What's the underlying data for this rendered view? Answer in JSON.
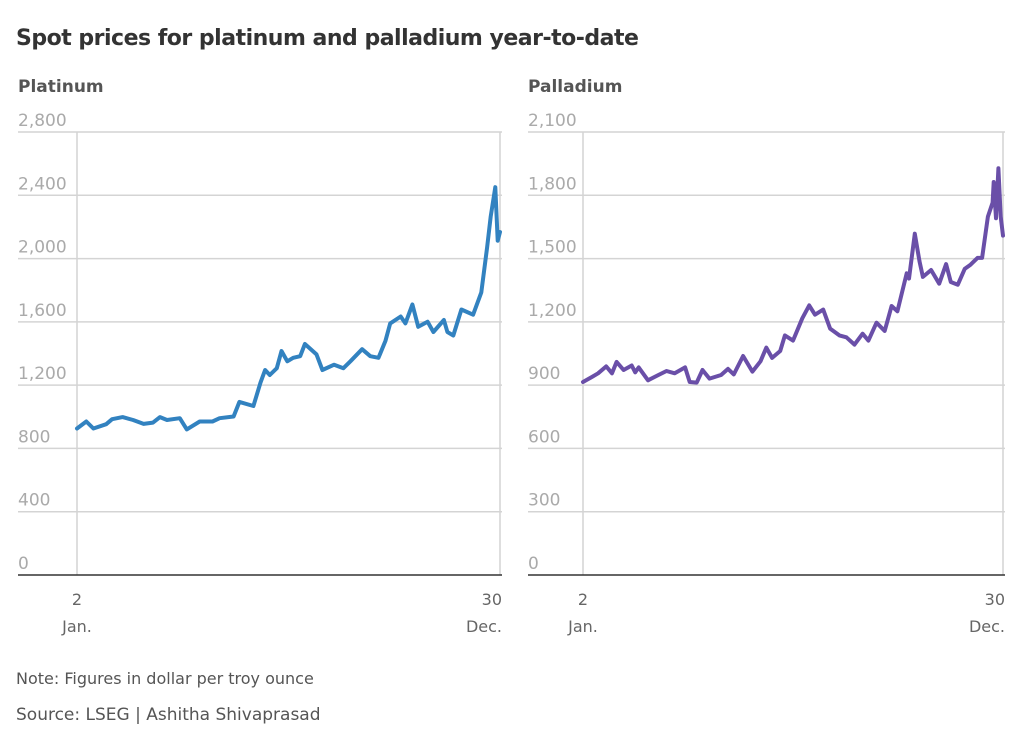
{
  "title": "Spot prices for platinum and palladium year-to-date",
  "note": "Note: Figures in dollar per troy ounce",
  "source": "Source: LSEG | Ashitha Shivaprasad",
  "chart_data": [
    {
      "type": "line",
      "title": "Platinum",
      "color": "#3282c0",
      "ylim": [
        0,
        2800
      ],
      "yticks": [
        0,
        400,
        800,
        1200,
        1600,
        2000,
        2400,
        2800
      ],
      "ytick_labels": [
        "0",
        "400",
        "800",
        "1,200",
        "1,600",
        "2,000",
        "2,400",
        "2,800"
      ],
      "xlim": [
        "01-02",
        "12-30"
      ],
      "xtick_labels": [
        {
          "day": "2",
          "month": "Jan."
        },
        {
          "day": "30",
          "month": "Dec."
        }
      ],
      "grid": true,
      "x": [
        "01-02",
        "01-10",
        "01-16",
        "01-27",
        "02-01",
        "02-10",
        "02-19",
        "02-28",
        "03-08",
        "03-14",
        "03-20",
        "03-31",
        "04-06",
        "04-17",
        "04-28",
        "05-04",
        "05-16",
        "05-21",
        "06-02",
        "06-08",
        "06-12",
        "06-16",
        "06-22",
        "06-26",
        "07-01",
        "07-06",
        "07-12",
        "07-16",
        "07-26",
        "07-31",
        "08-10",
        "08-18",
        "08-24",
        "09-03",
        "09-10",
        "09-17",
        "09-23",
        "09-27",
        "10-06",
        "10-10",
        "10-16",
        "10-21",
        "10-29",
        "11-03",
        "11-12",
        "11-15",
        "11-20",
        "11-27",
        "12-07",
        "12-14",
        "12-19",
        "12-22",
        "12-26",
        "12-28",
        "12-30"
      ],
      "values": [
        926,
        970,
        926,
        953,
        985,
        998,
        980,
        955,
        963,
        998,
        980,
        991,
        920,
        970,
        970,
        991,
        1002,
        1094,
        1068,
        1216,
        1296,
        1264,
        1307,
        1416,
        1351,
        1373,
        1383,
        1460,
        1394,
        1296,
        1329,
        1307,
        1351,
        1427,
        1383,
        1373,
        1481,
        1590,
        1634,
        1590,
        1710,
        1569,
        1601,
        1536,
        1612,
        1536,
        1514,
        1678,
        1645,
        1786,
        2070,
        2266,
        2451,
        2113,
        2168
      ]
    },
    {
      "type": "line",
      "title": "Palladium",
      "color": "#6a4fa8",
      "ylim": [
        0,
        2100
      ],
      "yticks": [
        0,
        300,
        600,
        900,
        1200,
        1500,
        1800,
        2100
      ],
      "ytick_labels": [
        "0",
        "300",
        "600",
        "900",
        "1,200",
        "1,500",
        "1,800",
        "2,100"
      ],
      "xlim": [
        "01-02",
        "12-30"
      ],
      "xtick_labels": [
        {
          "day": "2",
          "month": "Jan."
        },
        {
          "day": "30",
          "month": "Dec."
        }
      ],
      "grid": true,
      "x": [
        "01-02",
        "01-10",
        "01-15",
        "01-22",
        "01-27",
        "01-31",
        "02-06",
        "02-13",
        "02-16",
        "02-19",
        "02-27",
        "03-08",
        "03-15",
        "03-22",
        "03-31",
        "04-04",
        "04-10",
        "04-15",
        "04-21",
        "05-01",
        "05-07",
        "05-12",
        "05-20",
        "05-28",
        "06-04",
        "06-09",
        "06-14",
        "06-21",
        "06-25",
        "07-02",
        "07-10",
        "07-16",
        "07-21",
        "07-28",
        "08-03",
        "08-11",
        "08-17",
        "08-24",
        "08-31",
        "09-05",
        "09-12",
        "09-19",
        "09-25",
        "09-30",
        "10-08",
        "10-10",
        "10-15",
        "10-19",
        "10-22",
        "10-29",
        "11-05",
        "11-11",
        "11-15",
        "11-21",
        "11-27",
        "12-02",
        "12-08",
        "12-12",
        "12-17",
        "12-21",
        "12-22",
        "12-24",
        "12-26",
        "12-28",
        "12-30"
      ],
      "values": [
        915,
        940,
        956,
        989,
        956,
        1010,
        972,
        993,
        961,
        984,
        923,
        948,
        967,
        956,
        984,
        915,
        912,
        972,
        931,
        948,
        977,
        951,
        1038,
        964,
        1013,
        1078,
        1029,
        1062,
        1136,
        1111,
        1217,
        1278,
        1234,
        1258,
        1168,
        1136,
        1127,
        1092,
        1144,
        1111,
        1196,
        1157,
        1275,
        1250,
        1430,
        1405,
        1618,
        1487,
        1413,
        1446,
        1381,
        1474,
        1389,
        1376,
        1451,
        1471,
        1503,
        1503,
        1699,
        1765,
        1863,
        1691,
        1928,
        1699,
        1609
      ]
    }
  ]
}
